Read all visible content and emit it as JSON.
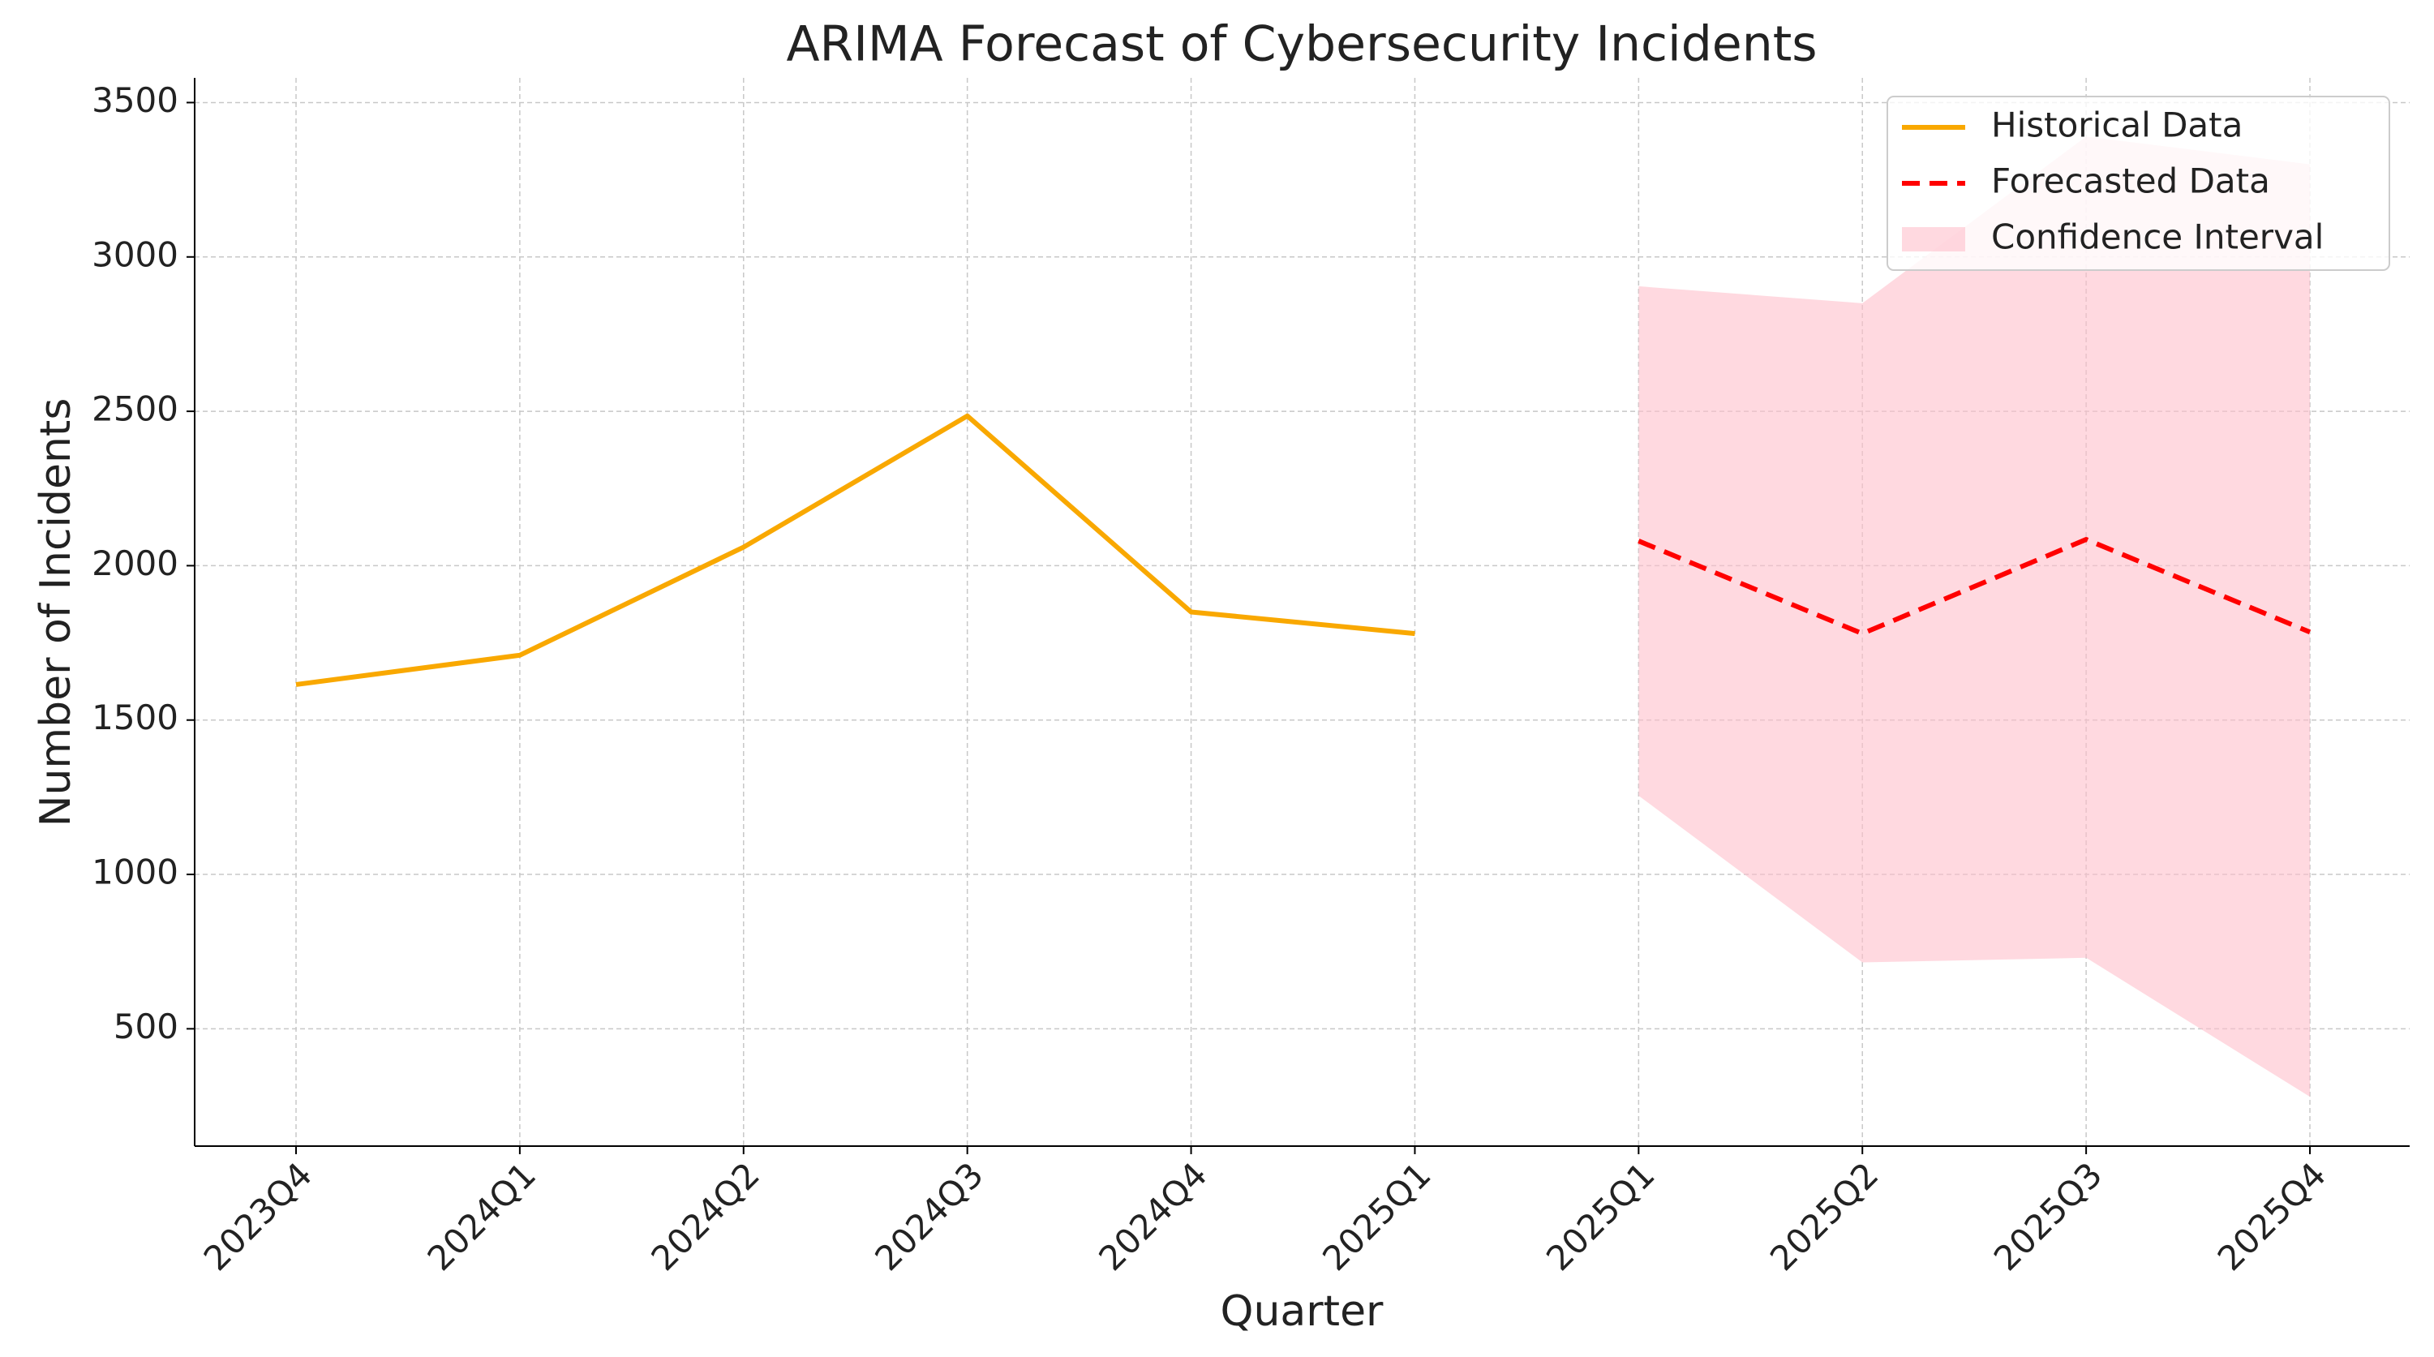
{
  "chart_data": {
    "type": "line",
    "title": "ARIMA Forecast of Cybersecurity Incidents",
    "x_label": "Quarter",
    "y_label": "Number of Incidents",
    "categories": [
      "2023Q4",
      "2024Q1",
      "2024Q2",
      "2024Q3",
      "2024Q4",
      "2025Q1",
      "2025Q1",
      "2025Q2",
      "2025Q3",
      "2025Q4"
    ],
    "series": [
      {
        "name": "Historical Data",
        "color": "#f9a800",
        "dashed": false,
        "values": [
          1615,
          1710,
          2060,
          2485,
          1850,
          1780,
          null,
          null,
          null,
          null
        ]
      },
      {
        "name": "Forecasted Data",
        "color": "#ff0000",
        "dashed": true,
        "values": [
          null,
          null,
          null,
          null,
          null,
          null,
          2080,
          1780,
          2085,
          1785
        ]
      }
    ],
    "confidence_interval": {
      "name": "Confidence Interval",
      "color": "#ffc0cb",
      "lower": [
        null,
        null,
        null,
        null,
        null,
        null,
        1255,
        715,
        730,
        280
      ],
      "upper": [
        null,
        null,
        null,
        null,
        null,
        null,
        2905,
        2850,
        3390,
        3300
      ]
    },
    "ylim": [
      120,
      3580
    ],
    "yticks": [
      500,
      1000,
      1500,
      2000,
      2500,
      3000,
      3500
    ],
    "grid": true,
    "legend": "upper right"
  }
}
